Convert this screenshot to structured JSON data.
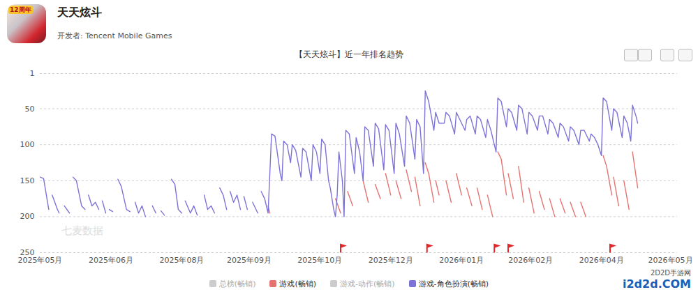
{
  "header": {
    "app_name": "天天炫斗",
    "icon_badge": "12周年",
    "developer": "开发者: Tencent Mobile Games"
  },
  "watermarks": [
    "七麦数据",
    "2D2D手游网",
    "i2d2d.COM"
  ],
  "chart_data": {
    "type": "line",
    "title": "【天天炫斗】近一年排名趋势",
    "xlim": [
      0,
      369
    ],
    "xticks": [
      {
        "value": 0,
        "label": "2025年05月"
      },
      {
        "value": 41,
        "label": "2025年06月"
      },
      {
        "value": 82,
        "label": "2025年08月"
      },
      {
        "value": 121,
        "label": "2025年09月"
      },
      {
        "value": 162,
        "label": "2025年10月"
      },
      {
        "value": 203,
        "label": "2025年12月"
      },
      {
        "value": 244,
        "label": "2026年01月"
      },
      {
        "value": 284,
        "label": "2026年02月"
      },
      {
        "value": 325,
        "label": "2026年04月"
      },
      {
        "value": 365,
        "label": "2026年05月"
      }
    ],
    "ylim": [
      250,
      1
    ],
    "yticks": [
      1,
      50,
      100,
      150,
      200,
      250
    ],
    "grid": true,
    "legend": "bottom",
    "flags": {
      "x": [
        174,
        224,
        263,
        271,
        330
      ],
      "color": "#e0262b"
    },
    "series": [
      {
        "name": "总榜(畅销)",
        "color": "#cccccc",
        "x": [],
        "values": []
      },
      {
        "name": "游戏(畅销)",
        "color": "#e5736f",
        "x": [
          132,
          133,
          133,
          171,
          174,
          174,
          178,
          181,
          181,
          187,
          190,
          190,
          194,
          197,
          197,
          200,
          203,
          203,
          206,
          209,
          209,
          212,
          215,
          215,
          217,
          220,
          220,
          223,
          225,
          228,
          228,
          229,
          231,
          231,
          235,
          238,
          238,
          241,
          244,
          244,
          247,
          250,
          250,
          253,
          256,
          256,
          259,
          262,
          262,
          265,
          267,
          270,
          270,
          271,
          274,
          274,
          277,
          280,
          280,
          283,
          286,
          286,
          289,
          292,
          292,
          295,
          298,
          298,
          301,
          304,
          304,
          307,
          310,
          310,
          313,
          316,
          316,
          326,
          328,
          331,
          331,
          332,
          335,
          335,
          338,
          341,
          341,
          343,
          346
        ],
        "values": [
          185,
          195,
          null,
          175,
          195,
          null,
          165,
          185,
          null,
          150,
          180,
          null,
          155,
          175,
          null,
          140,
          170,
          null,
          150,
          175,
          null,
          135,
          165,
          null,
          145,
          185,
          null,
          125,
          140,
          180,
          null,
          150,
          170,
          null,
          150,
          180,
          null,
          140,
          170,
          null,
          160,
          185,
          null,
          160,
          190,
          null,
          170,
          200,
          null,
          110,
          120,
          170,
          null,
          140,
          175,
          null,
          130,
          180,
          null,
          160,
          195,
          null,
          165,
          190,
          null,
          175,
          200,
          null,
          175,
          195,
          null,
          180,
          200,
          null,
          180,
          200,
          null,
          115,
          130,
          170,
          null,
          145,
          185,
          null,
          150,
          190,
          null,
          110,
          160
        ]
      },
      {
        "name": "游戏-动作(畅销)",
        "color": "#cccccc",
        "x": [],
        "values": []
      },
      {
        "name": "游戏-角色扮演(畅销)",
        "color": "#7d72d8",
        "x": [
          0,
          2,
          5,
          6,
          7,
          10,
          11,
          12,
          14,
          17,
          18,
          19,
          21,
          24,
          26,
          27,
          28,
          30,
          32,
          34,
          35,
          36,
          38,
          39,
          40,
          42,
          43,
          45,
          47,
          50,
          52,
          53,
          55,
          57,
          59,
          61,
          63,
          65,
          67,
          68,
          70,
          72,
          74,
          76,
          78,
          80,
          82,
          83,
          84,
          87,
          89,
          91,
          93,
          95,
          97,
          99,
          101,
          102,
          104,
          106,
          108,
          109,
          110,
          112,
          114,
          116,
          117,
          118,
          120,
          121,
          123,
          126,
          127,
          128,
          130,
          132,
          134,
          136,
          139,
          140,
          141,
          143,
          145,
          146,
          148,
          151,
          152,
          154,
          157,
          158,
          160,
          162,
          163,
          165,
          167,
          168,
          170,
          171,
          172,
          173,
          175,
          176,
          177,
          179,
          182,
          183,
          185,
          187,
          188,
          190,
          193,
          194,
          196,
          199,
          200,
          202,
          205,
          206,
          208,
          211,
          212,
          214,
          217,
          218,
          220,
          222,
          223,
          225,
          228,
          229,
          231,
          234,
          235,
          237,
          240,
          241,
          243,
          246,
          247,
          249,
          252,
          253,
          255,
          258,
          259,
          261,
          263,
          264,
          265,
          267,
          270,
          271,
          273,
          276,
          277,
          279,
          282,
          283,
          285,
          288,
          289,
          291,
          294,
          295,
          297,
          300,
          301,
          303,
          306,
          307,
          309,
          312,
          313,
          315,
          318,
          319,
          321,
          323,
          325,
          326,
          328,
          331,
          332,
          334,
          337,
          338,
          340,
          342,
          343,
          345,
          346
        ],
        "values": [
          145,
          147,
          190,
          null,
          170,
          190,
          195,
          null,
          185,
          195,
          null,
          145,
          150,
          185,
          190,
          null,
          170,
          185,
          180,
          190,
          null,
          178,
          195,
          null,
          190,
          193,
          null,
          148,
          158,
          190,
          193,
          null,
          180,
          195,
          185,
          200,
          null,
          185,
          195,
          null,
          192,
          198,
          null,
          148,
          155,
          190,
          195,
          null,
          178,
          195,
          185,
          198,
          null,
          170,
          190,
          185,
          195,
          null,
          160,
          170,
          190,
          null,
          165,
          180,
          170,
          190,
          null,
          172,
          190,
          null,
          180,
          195,
          null,
          165,
          175,
          195,
          85,
          88,
          140,
          150,
          95,
          100,
          125,
          100,
          108,
          145,
          105,
          110,
          150,
          100,
          110,
          140,
          92,
          100,
          150,
          160,
          190,
          200,
          170,
          110,
          150,
          200,
          80,
          85,
          140,
          90,
          110,
          150,
          75,
          80,
          130,
          70,
          78,
          135,
          72,
          80,
          140,
          70,
          85,
          130,
          60,
          70,
          120,
          65,
          75,
          140,
          25,
          40,
          80,
          55,
          70,
          70,
          55,
          60,
          85,
          55,
          65,
          80,
          65,
          60,
          85,
          60,
          65,
          90,
          65,
          80,
          100,
          110,
          35,
          40,
          75,
          50,
          55,
          80,
          45,
          50,
          85,
          55,
          60,
          80,
          60,
          60,
          85,
          65,
          70,
          90,
          70,
          75,
          95,
          75,
          80,
          100,
          80,
          80,
          95,
          85,
          90,
          100,
          115,
          35,
          40,
          80,
          50,
          55,
          90,
          60,
          70,
          95,
          45,
          60,
          70
        ]
      }
    ]
  }
}
